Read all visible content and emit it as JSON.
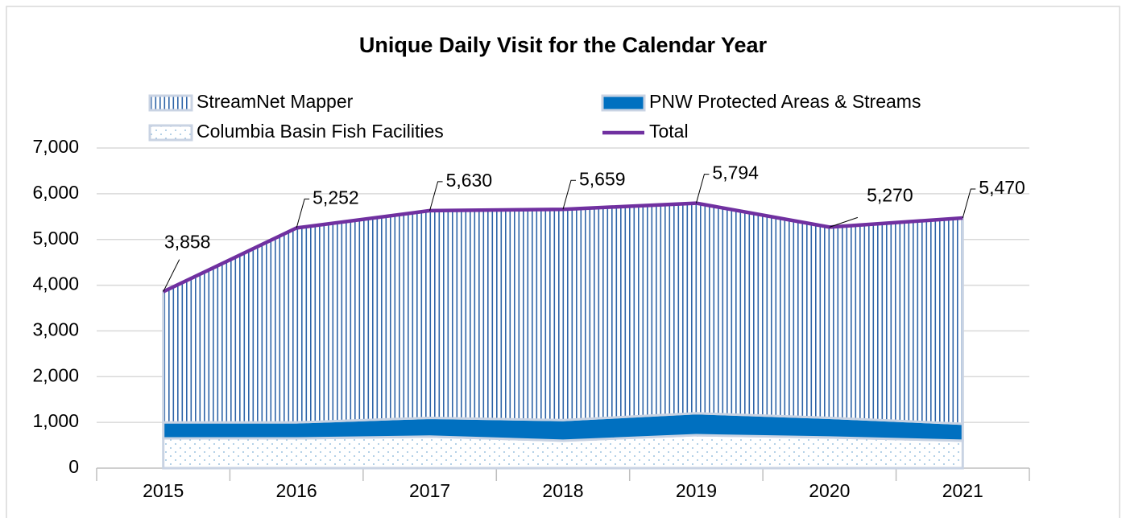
{
  "chart_data": {
    "type": "stacked-area-line",
    "title": "Unique Daily Visit for the Calendar Year",
    "categories": [
      "2015",
      "2016",
      "2017",
      "2018",
      "2019",
      "2020",
      "2021"
    ],
    "series": [
      {
        "name": "StreamNet Mapper",
        "color": "#2e64a8",
        "pattern": "vertical-lines",
        "values": [
          2858,
          4252,
          4530,
          4609,
          4594,
          4170,
          4500
        ]
      },
      {
        "name": "PNW Protected Areas & Streams",
        "color": "#0070c0",
        "pattern": "solid",
        "values": [
          350,
          350,
          410,
          450,
          480,
          430,
          370
        ]
      },
      {
        "name": "Columbia Basin Fish Facilities",
        "color": "#7fb0d6",
        "pattern": "dots",
        "values": [
          650,
          650,
          690,
          600,
          720,
          670,
          600
        ]
      },
      {
        "name": "Total",
        "color": "#7030a0",
        "kind": "line",
        "values": [
          3858,
          5252,
          5630,
          5659,
          5794,
          5270,
          5470
        ],
        "value_labels": [
          "3,858",
          "5,252",
          "5,630",
          "5,659",
          "5,794",
          "5,270",
          "5,470"
        ]
      }
    ],
    "ylim": [
      0,
      7000
    ],
    "yticks": [
      0,
      {
        "value": 1000,
        "label": "1,000"
      },
      {
        "value": 2000,
        "label": "2,000"
      },
      {
        "value": 3000,
        "label": "3,000"
      },
      {
        "value": 4000,
        "label": "4,000"
      },
      {
        "value": 5000,
        "label": "5,000"
      },
      {
        "value": 6000,
        "label": "6,000"
      },
      {
        "value": 7000,
        "label": "7,000"
      }
    ],
    "grid": true
  }
}
